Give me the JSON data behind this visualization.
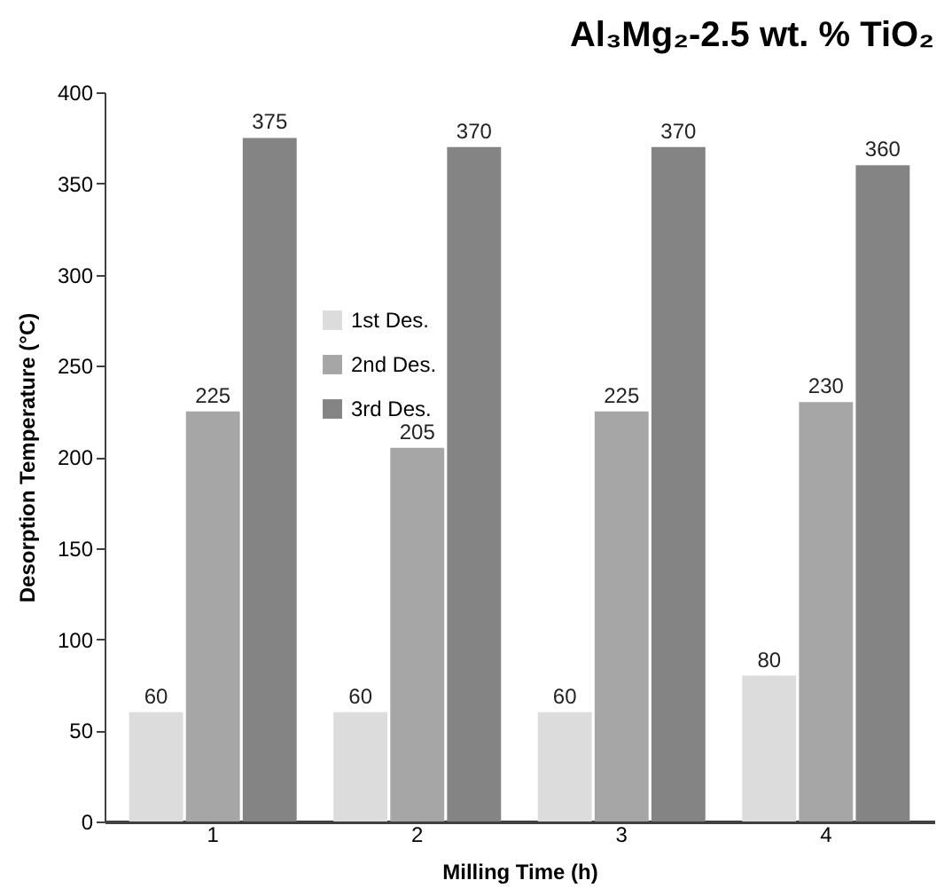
{
  "chart_data": {
    "type": "bar",
    "title": "Al₃Mg₂-2.5 wt. % TiO₂",
    "xlabel": "Milling Time (h)",
    "ylabel": "Desorption Temperature (°C)",
    "categories": [
      "1",
      "2",
      "3",
      "4"
    ],
    "series": [
      {
        "name": "1st Des.",
        "color": "#dcdcdc",
        "values": [
          60,
          60,
          60,
          80
        ]
      },
      {
        "name": "2nd Des.",
        "color": "#a6a6a6",
        "values": [
          225,
          205,
          225,
          230
        ]
      },
      {
        "name": "3rd Des.",
        "color": "#848484",
        "values": [
          375,
          370,
          370,
          360
        ]
      }
    ],
    "ylim": [
      0,
      400
    ],
    "yticks": [
      0,
      50,
      100,
      150,
      200,
      250,
      300,
      350,
      400
    ],
    "legend": "top left",
    "data_labels": true
  }
}
